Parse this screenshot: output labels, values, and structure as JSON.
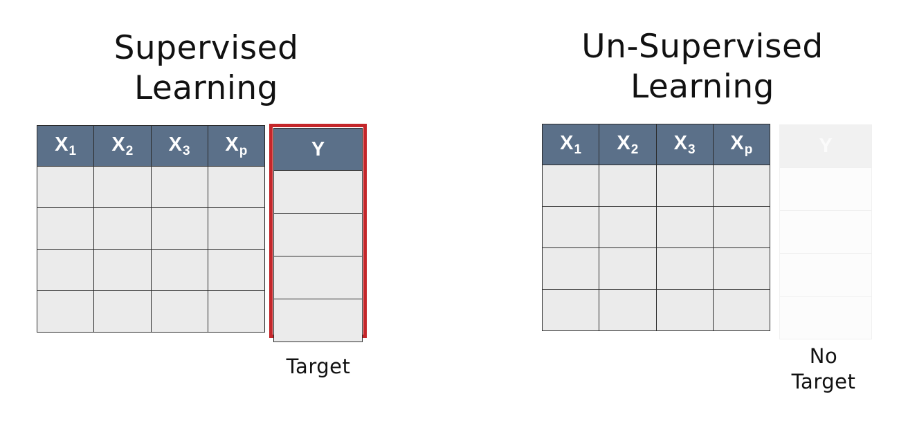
{
  "panels": {
    "supervised": {
      "title_lines": [
        "Supervised",
        "Learning"
      ],
      "feature_headers": [
        {
          "base": "X",
          "sub": "1"
        },
        {
          "base": "X",
          "sub": "2"
        },
        {
          "base": "X",
          "sub": "3"
        },
        {
          "base": "X",
          "sub": "p"
        }
      ],
      "target_header": "Y",
      "caption_lines": [
        "Target"
      ],
      "highlight_color": "#c4262a"
    },
    "unsupervised": {
      "title_lines": [
        "Un-Supervised",
        "Learning"
      ],
      "feature_headers": [
        {
          "base": "X",
          "sub": "1"
        },
        {
          "base": "X",
          "sub": "2"
        },
        {
          "base": "X",
          "sub": "3"
        },
        {
          "base": "X",
          "sub": "p"
        }
      ],
      "target_header": "Y",
      "caption_lines": [
        "No",
        "Target"
      ]
    }
  },
  "colors": {
    "header_fill": "#5b7089",
    "cell_fill": "#ebebeb"
  }
}
